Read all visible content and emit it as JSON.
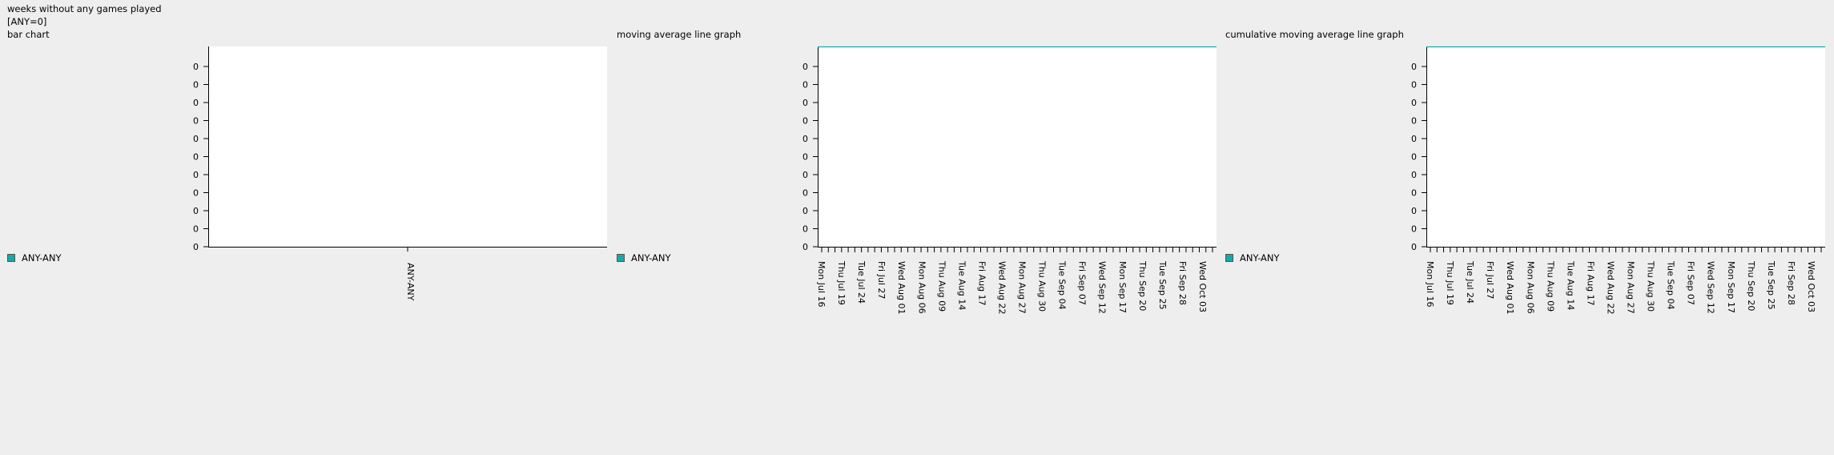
{
  "header": {
    "title": "weeks without any games played",
    "subtitle": "[ANY=0]"
  },
  "colors": {
    "series": "#1aa7a7",
    "plot_bg": "#ffffff",
    "page_bg": "#eeeeee",
    "axis": "#000000"
  },
  "chart_data": [
    {
      "type": "bar",
      "title": "bar chart",
      "categories": [
        "ANY-ANY"
      ],
      "series": [
        {
          "name": "ANY-ANY",
          "values": [
            0
          ]
        }
      ],
      "yticks": [
        "0",
        "0",
        "0",
        "0",
        "0",
        "0",
        "0",
        "0",
        "0",
        "0",
        "0"
      ],
      "legend": "bottom-left",
      "grid": false
    },
    {
      "type": "line",
      "title": "moving average line graph",
      "x": [
        "Mon Jul 16",
        "Thu Jul 19",
        "Tue Jul 24",
        "Fri Jul 27",
        "Wed Aug 01",
        "Mon Aug 06",
        "Thu Aug 09",
        "Tue Aug 14",
        "Fri Aug 17",
        "Wed Aug 22",
        "Mon Aug 27",
        "Thu Aug 30",
        "Tue Sep 04",
        "Fri Sep 07",
        "Wed Sep 12",
        "Mon Sep 17",
        "Thu Sep 20",
        "Tue Sep 25",
        "Fri Sep 28",
        "Wed Oct 03"
      ],
      "series": [
        {
          "name": "ANY-ANY",
          "values": [
            0,
            0,
            0,
            0,
            0,
            0,
            0,
            0,
            0,
            0,
            0,
            0,
            0,
            0,
            0,
            0,
            0,
            0,
            0,
            0
          ]
        }
      ],
      "yticks": [
        "0",
        "0",
        "0",
        "0",
        "0",
        "0",
        "0",
        "0",
        "0",
        "0",
        "0"
      ],
      "legend": "bottom-left",
      "grid": false
    },
    {
      "type": "line",
      "title": "cumulative moving average line graph",
      "x": [
        "Mon Jul 16",
        "Thu Jul 19",
        "Tue Jul 24",
        "Fri Jul 27",
        "Wed Aug 01",
        "Mon Aug 06",
        "Thu Aug 09",
        "Tue Aug 14",
        "Fri Aug 17",
        "Wed Aug 22",
        "Mon Aug 27",
        "Thu Aug 30",
        "Tue Sep 04",
        "Fri Sep 07",
        "Wed Sep 12",
        "Mon Sep 17",
        "Thu Sep 20",
        "Tue Sep 25",
        "Fri Sep 28",
        "Wed Oct 03"
      ],
      "series": [
        {
          "name": "ANY-ANY",
          "values": [
            0,
            0,
            0,
            0,
            0,
            0,
            0,
            0,
            0,
            0,
            0,
            0,
            0,
            0,
            0,
            0,
            0,
            0,
            0,
            0
          ]
        }
      ],
      "yticks": [
        "0",
        "0",
        "0",
        "0",
        "0",
        "0",
        "0",
        "0",
        "0",
        "0",
        "0"
      ],
      "legend": "bottom-left",
      "grid": false
    }
  ]
}
